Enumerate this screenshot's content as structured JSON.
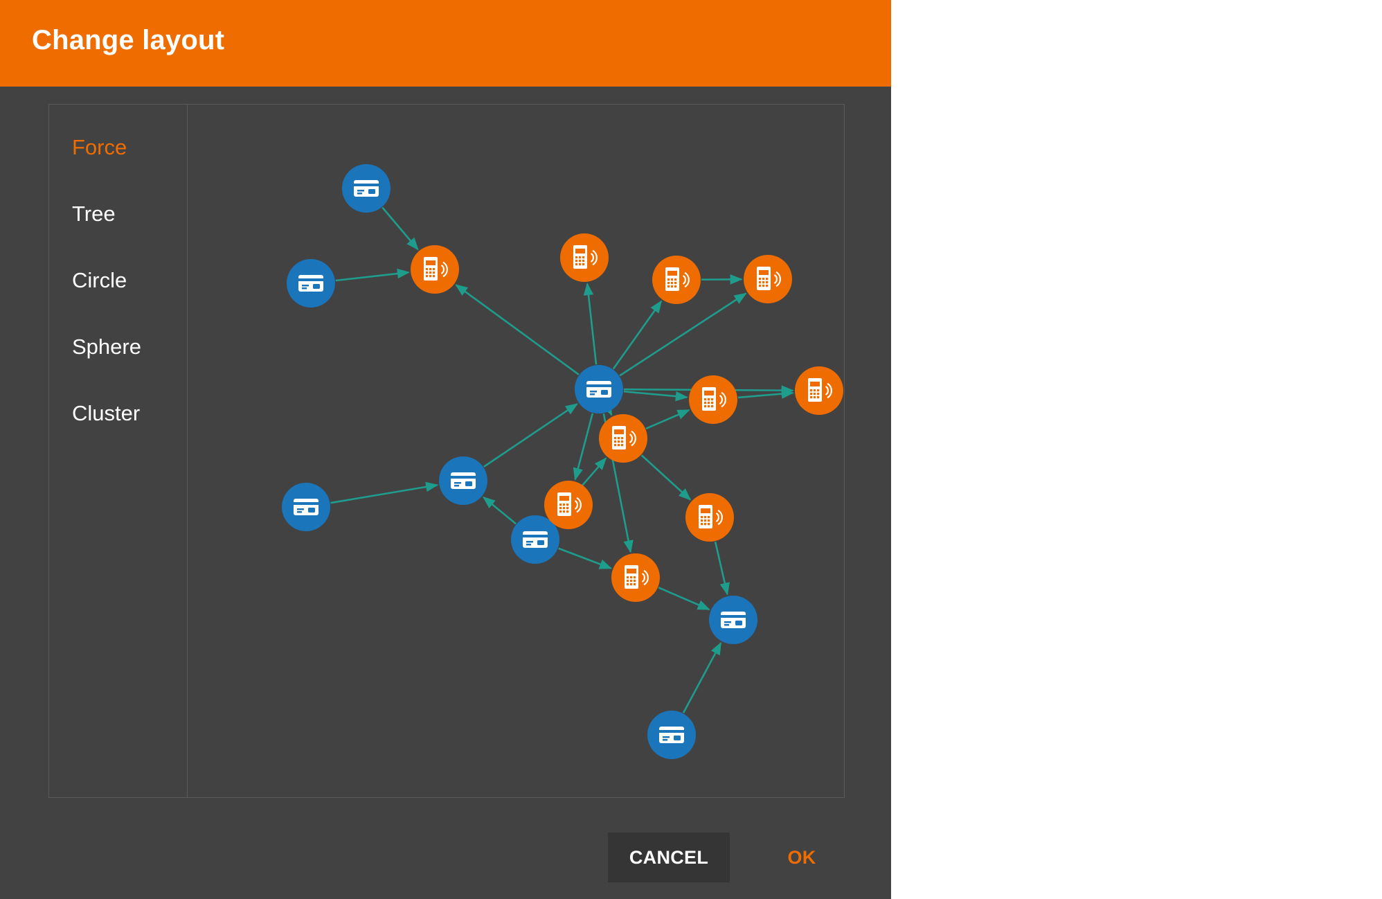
{
  "dialog": {
    "title": "Change layout",
    "header_color": "#ef6c00"
  },
  "layouts": [
    {
      "label": "Force",
      "active": true
    },
    {
      "label": "Tree",
      "active": false
    },
    {
      "label": "Circle",
      "active": false
    },
    {
      "label": "Sphere",
      "active": false
    },
    {
      "label": "Cluster",
      "active": false
    }
  ],
  "graph": {
    "node_types": {
      "card": {
        "icon": "credit-card-icon",
        "color": "#1b75bb"
      },
      "terminal": {
        "icon": "payment-terminal-icon",
        "color": "#ef6c00"
      }
    },
    "edge_color": "#1e9c8c",
    "nodes": [
      {
        "id": "c1",
        "type": "card"
      },
      {
        "id": "c2",
        "type": "card"
      },
      {
        "id": "c3",
        "type": "card"
      },
      {
        "id": "c4",
        "type": "card"
      },
      {
        "id": "c5",
        "type": "card"
      },
      {
        "id": "c6",
        "type": "card"
      },
      {
        "id": "c7",
        "type": "card"
      },
      {
        "id": "c8",
        "type": "card"
      },
      {
        "id": "t1",
        "type": "terminal"
      },
      {
        "id": "t2",
        "type": "terminal"
      },
      {
        "id": "t3",
        "type": "terminal"
      },
      {
        "id": "t4",
        "type": "terminal"
      },
      {
        "id": "t5",
        "type": "terminal"
      },
      {
        "id": "t6",
        "type": "terminal"
      },
      {
        "id": "t7",
        "type": "terminal"
      },
      {
        "id": "t8",
        "type": "terminal"
      },
      {
        "id": "t9",
        "type": "terminal"
      },
      {
        "id": "t10",
        "type": "terminal"
      }
    ],
    "edges": [
      {
        "from": "c1",
        "to": "t1"
      },
      {
        "from": "c2",
        "to": "t1"
      },
      {
        "from": "c3",
        "to": "t1"
      },
      {
        "from": "c3",
        "to": "t2"
      },
      {
        "from": "c3",
        "to": "t3"
      },
      {
        "from": "c3",
        "to": "t4"
      },
      {
        "from": "c3",
        "to": "t5"
      },
      {
        "from": "c3",
        "to": "t6"
      },
      {
        "from": "c3",
        "to": "t7"
      },
      {
        "from": "c3",
        "to": "t9"
      },
      {
        "from": "c3",
        "to": "t10"
      },
      {
        "from": "t3",
        "to": "t4"
      },
      {
        "from": "t5",
        "to": "t6"
      },
      {
        "from": "t7",
        "to": "t5"
      },
      {
        "from": "t7",
        "to": "t8"
      },
      {
        "from": "t8",
        "to": "c7"
      },
      {
        "from": "c4",
        "to": "c3"
      },
      {
        "from": "c5",
        "to": "c4"
      },
      {
        "from": "c6",
        "to": "c4"
      },
      {
        "from": "c6",
        "to": "t9"
      },
      {
        "from": "c6",
        "to": "t7"
      },
      {
        "from": "c6",
        "to": "t10"
      },
      {
        "from": "t10",
        "to": "c7"
      },
      {
        "from": "c8",
        "to": "c7"
      }
    ]
  },
  "buttons": {
    "cancel": "CANCEL",
    "ok": "OK"
  }
}
